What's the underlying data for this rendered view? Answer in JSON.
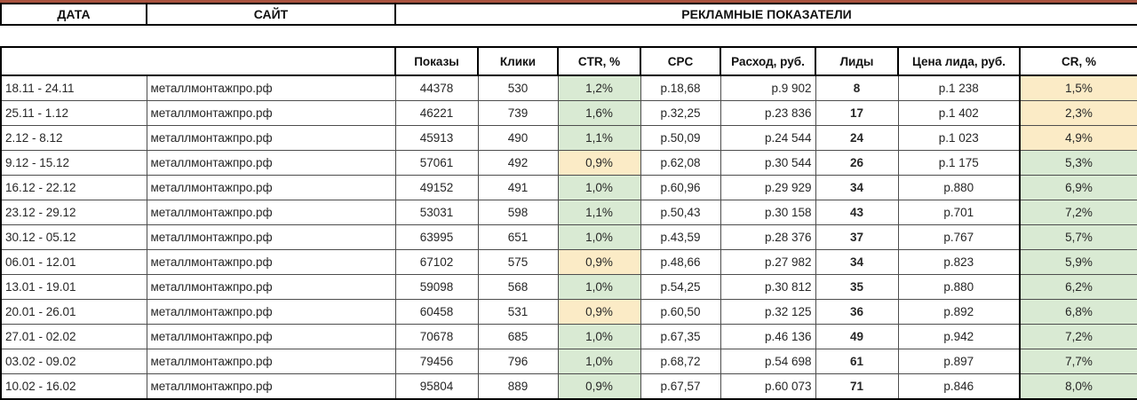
{
  "colors": {
    "highlight_green": "#d9ead3",
    "highlight_yellow": "#fbebc6",
    "top_accent_line": "#a9523e",
    "border_black": "#000000"
  },
  "banner": {
    "date_label": "ДАТА",
    "site_label": "САЙТ",
    "metrics_label": "РЕКЛАМНЫЕ ПОКАЗАТЕЛИ"
  },
  "table": {
    "headers": {
      "impressions": "Показы",
      "clicks": "Клики",
      "ctr": "CTR, %",
      "cpc": "CPC",
      "spend": "Расход, руб.",
      "leads": "Лиды",
      "lead_price": "Цена лида, руб.",
      "cr": "CR, %"
    },
    "rows": [
      {
        "date": "18.11 - 24.11",
        "site": "металлмонтажпро.рф",
        "impressions": "44378",
        "clicks": "530",
        "ctr": "1,2%",
        "ctr_bg": "green",
        "cpc": "р.18,68",
        "spend": "р.9 902",
        "leads": "8",
        "lead_price": "р.1 238",
        "cr": "1,5%",
        "cr_bg": "yellow"
      },
      {
        "date": "25.11 - 1.12",
        "site": "металлмонтажпро.рф",
        "impressions": "46221",
        "clicks": "739",
        "ctr": "1,6%",
        "ctr_bg": "green",
        "cpc": "р.32,25",
        "spend": "р.23 836",
        "leads": "17",
        "lead_price": "р.1 402",
        "cr": "2,3%",
        "cr_bg": "yellow"
      },
      {
        "date": "2.12 - 8.12",
        "site": "металлмонтажпро.рф",
        "impressions": "45913",
        "clicks": "490",
        "ctr": "1,1%",
        "ctr_bg": "green",
        "cpc": "р.50,09",
        "spend": "р.24 544",
        "leads": "24",
        "lead_price": "р.1 023",
        "cr": "4,9%",
        "cr_bg": "yellow"
      },
      {
        "date": "9.12 - 15.12",
        "site": "металлмонтажпро.рф",
        "impressions": "57061",
        "clicks": "492",
        "ctr": "0,9%",
        "ctr_bg": "yellow",
        "cpc": "р.62,08",
        "spend": "р.30 544",
        "leads": "26",
        "lead_price": "р.1 175",
        "cr": "5,3%",
        "cr_bg": "green"
      },
      {
        "date": "16.12 - 22.12",
        "site": "металлмонтажпро.рф",
        "impressions": "49152",
        "clicks": "491",
        "ctr": "1,0%",
        "ctr_bg": "green",
        "cpc": "р.60,96",
        "spend": "р.29 929",
        "leads": "34",
        "lead_price": "р.880",
        "cr": "6,9%",
        "cr_bg": "green"
      },
      {
        "date": "23.12 - 29.12",
        "site": "металлмонтажпро.рф",
        "impressions": "53031",
        "clicks": "598",
        "ctr": "1,1%",
        "ctr_bg": "green",
        "cpc": "р.50,43",
        "spend": "р.30 158",
        "leads": "43",
        "lead_price": "р.701",
        "cr": "7,2%",
        "cr_bg": "green"
      },
      {
        "date": "30.12 - 05.12",
        "site": "металлмонтажпро.рф",
        "impressions": "63995",
        "clicks": "651",
        "ctr": "1,0%",
        "ctr_bg": "green",
        "cpc": "р.43,59",
        "spend": "р.28 376",
        "leads": "37",
        "lead_price": "р.767",
        "cr": "5,7%",
        "cr_bg": "green"
      },
      {
        "date": "06.01 - 12.01",
        "site": "металлмонтажпро.рф",
        "impressions": "67102",
        "clicks": "575",
        "ctr": "0,9%",
        "ctr_bg": "yellow",
        "cpc": "р.48,66",
        "spend": "р.27 982",
        "leads": "34",
        "lead_price": "р.823",
        "cr": "5,9%",
        "cr_bg": "green"
      },
      {
        "date": "13.01 - 19.01",
        "site": "металлмонтажпро.рф",
        "impressions": "59098",
        "clicks": "568",
        "ctr": "1,0%",
        "ctr_bg": "green",
        "cpc": "р.54,25",
        "spend": "р.30 812",
        "leads": "35",
        "lead_price": "р.880",
        "cr": "6,2%",
        "cr_bg": "green"
      },
      {
        "date": "20.01 - 26.01",
        "site": "металлмонтажпро.рф",
        "impressions": "60458",
        "clicks": "531",
        "ctr": "0,9%",
        "ctr_bg": "yellow",
        "cpc": "р.60,50",
        "spend": "р.32 125",
        "leads": "36",
        "lead_price": "р.892",
        "cr": "6,8%",
        "cr_bg": "green"
      },
      {
        "date": "27.01 - 02.02",
        "site": "металлмонтажпро.рф",
        "impressions": "70678",
        "clicks": "685",
        "ctr": "1,0%",
        "ctr_bg": "green",
        "cpc": "р.67,35",
        "spend": "р.46 136",
        "leads": "49",
        "lead_price": "р.942",
        "cr": "7,2%",
        "cr_bg": "green"
      },
      {
        "date": "03.02 - 09.02",
        "site": "металлмонтажпро.рф",
        "impressions": "79456",
        "clicks": "796",
        "ctr": "1,0%",
        "ctr_bg": "green",
        "cpc": "р.68,72",
        "spend": "р.54 698",
        "leads": "61",
        "lead_price": "р.897",
        "cr": "7,7%",
        "cr_bg": "green"
      },
      {
        "date": "10.02 - 16.02",
        "site": "металлмонтажпро.рф",
        "impressions": "95804",
        "clicks": "889",
        "ctr": "0,9%",
        "ctr_bg": "green",
        "cpc": "р.67,57",
        "spend": "р.60 073",
        "leads": "71",
        "lead_price": "р.846",
        "cr": "8,0%",
        "cr_bg": "green"
      }
    ]
  }
}
